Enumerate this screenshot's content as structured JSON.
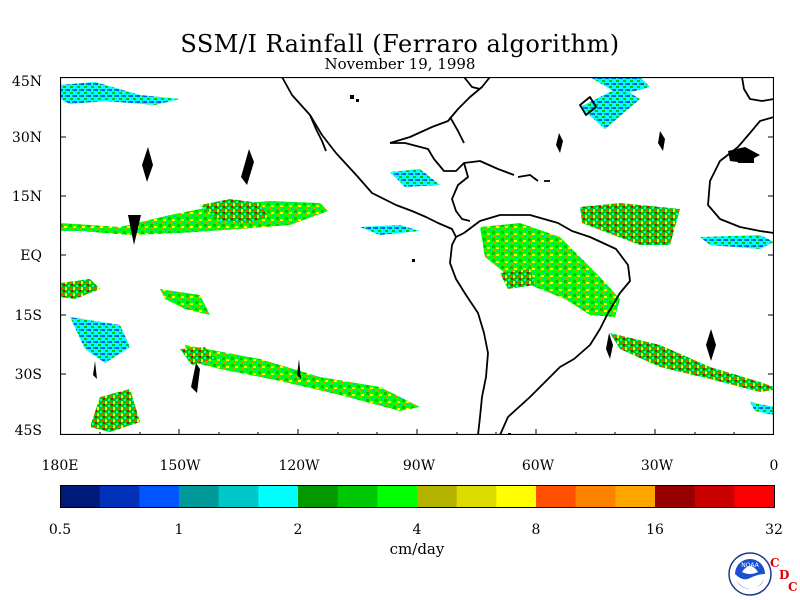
{
  "title": "SSM/I Rainfall (Ferraro algorithm)",
  "date": "November 19, 1998",
  "map": {
    "extent": {
      "lon_min": 180,
      "lon_max": 360,
      "lat_min": -45,
      "lat_max": 45
    },
    "lat_labels": [
      "45N",
      "30N",
      "15N",
      "EQ",
      "15S",
      "30S",
      "45S"
    ],
    "lon_labels": [
      "180E",
      "150W",
      "120W",
      "90W",
      "60W",
      "30W",
      "0"
    ]
  },
  "colorbar": {
    "colors": [
      "#001a7a",
      "#0031b8",
      "#0055ff",
      "#009999",
      "#00c8c8",
      "#00ffff",
      "#009900",
      "#00c800",
      "#00ff00",
      "#b4b400",
      "#dcdc00",
      "#ffff00",
      "#ff5000",
      "#ff8200",
      "#ffa500",
      "#960000",
      "#c80000",
      "#ff0000"
    ],
    "tick_labels": [
      "0.5",
      "1",
      "2",
      "4",
      "8",
      "16",
      "32"
    ],
    "units": "cm/day"
  },
  "logo": {
    "icon": "noaa-logo",
    "letters": [
      "C",
      "D",
      "C"
    ]
  }
}
